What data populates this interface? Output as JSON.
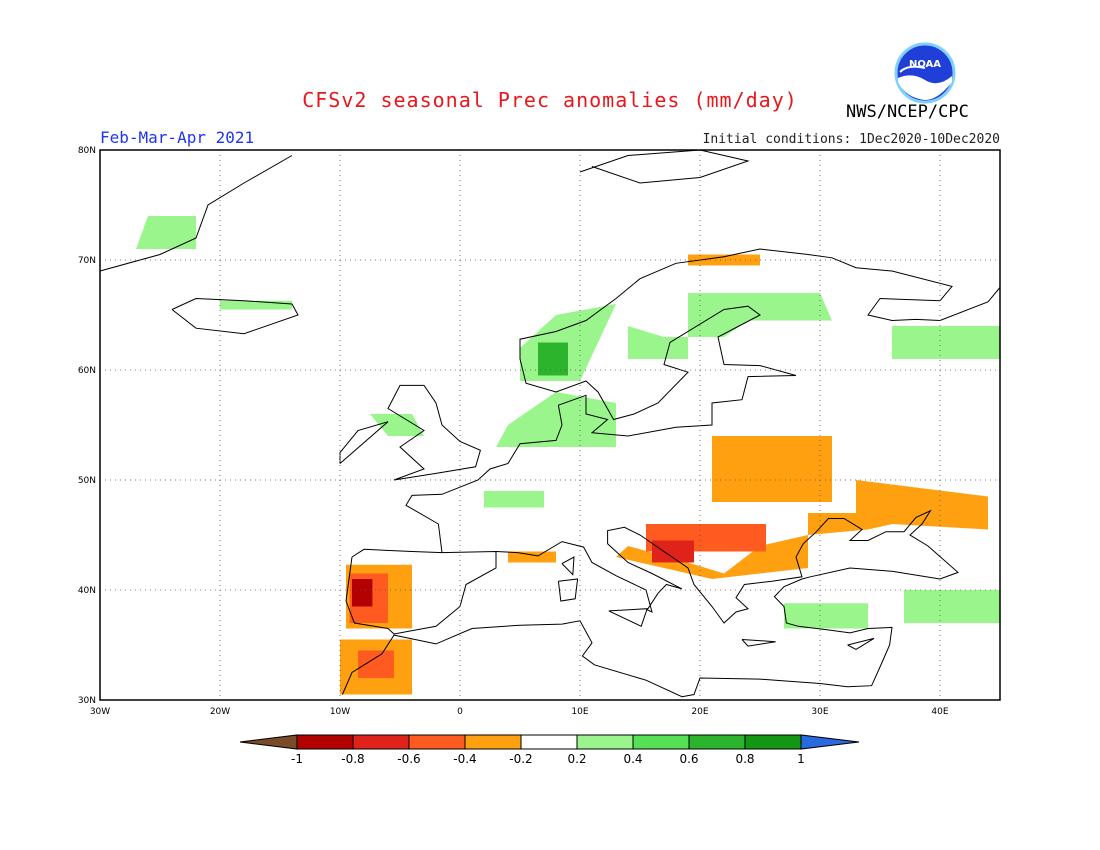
{
  "header": {
    "title": "CFSv2 seasonal Prec anomalies (mm/day)",
    "agency": "NWS/NCEP/CPC",
    "logo_text": "NOAA",
    "period": "Feb-Mar-Apr 2021",
    "initial_conditions": "Initial conditions: 1Dec2020-10Dec2020"
  },
  "map": {
    "projection": "equirectangular",
    "lon_range": [
      -30,
      45
    ],
    "lat_range": [
      30,
      80
    ],
    "lat_ticks": [
      "30N",
      "40N",
      "50N",
      "60N",
      "70N",
      "80N"
    ],
    "lon_ticks": [
      "30W",
      "20W",
      "10W",
      "0",
      "10E",
      "20E",
      "30E",
      "40E"
    ],
    "gridlines": "dotted"
  },
  "colorbar": {
    "labels": [
      "-1",
      "-0.8",
      "-0.6",
      "-0.4",
      "-0.2",
      "0.2",
      "0.4",
      "0.6",
      "0.8",
      "1"
    ],
    "colors": {
      "lt_-1": "#7a4a2a",
      "-1_-0.8": "#b30000",
      "-0.8_-0.6": "#e0231a",
      "-0.6_-0.4": "#ff5a1f",
      "-0.4_-0.2": "#ffa010",
      "-0.2_0.2": "#ffffff",
      "0.2_0.4": "#9af58c",
      "0.4_0.6": "#55e055",
      "0.6_0.8": "#2db42d",
      "0.8_1": "#139613",
      "gt_1": "#2a6ae0"
    }
  },
  "anomaly_regions": [
    {
      "name": "greenland-east",
      "level": "0.2_0.4",
      "polygon": [
        [
          -27,
          71
        ],
        [
          -22,
          71
        ],
        [
          -22,
          74
        ],
        [
          -26,
          74
        ]
      ]
    },
    {
      "name": "iceland",
      "level": "0.2_0.4",
      "polygon": [
        [
          -20,
          65.5
        ],
        [
          -14,
          65.5
        ],
        [
          -14,
          66.3
        ],
        [
          -20,
          66.3
        ]
      ]
    },
    {
      "name": "norway-coast",
      "level": "0.2_0.4",
      "polygon": [
        [
          5,
          59
        ],
        [
          10,
          59
        ],
        [
          13,
          66
        ],
        [
          8,
          65
        ],
        [
          5,
          62
        ]
      ]
    },
    {
      "name": "norway-coast-core",
      "level": "0.6_0.8",
      "polygon": [
        [
          6.5,
          59.5
        ],
        [
          9,
          59.5
        ],
        [
          9,
          62.5
        ],
        [
          6.5,
          62.5
        ]
      ]
    },
    {
      "name": "fennoscandia-north",
      "level": "0.2_0.4",
      "polygon": [
        [
          14,
          61
        ],
        [
          19,
          61
        ],
        [
          19,
          67
        ],
        [
          30,
          67
        ],
        [
          31,
          64.5
        ],
        [
          24,
          64.5
        ],
        [
          22,
          63
        ],
        [
          17,
          63
        ],
        [
          14,
          64
        ]
      ]
    },
    {
      "name": "russia-northwest",
      "level": "0.2_0.4",
      "polygon": [
        [
          36,
          61
        ],
        [
          45,
          61
        ],
        [
          45,
          64
        ],
        [
          36,
          64
        ]
      ]
    },
    {
      "name": "ireland-britain-north",
      "level": "0.2_0.4",
      "polygon": [
        [
          -7.5,
          56
        ],
        [
          -4,
          56
        ],
        [
          -3,
          54
        ],
        [
          -6,
          54
        ]
      ]
    },
    {
      "name": "denmark-north-sea",
      "level": "0.2_0.4",
      "polygon": [
        [
          3,
          53
        ],
        [
          13,
          53
        ],
        [
          13,
          57
        ],
        [
          8,
          58
        ],
        [
          4,
          55
        ]
      ]
    },
    {
      "name": "france-north",
      "level": "0.2_0.4",
      "polygon": [
        [
          2,
          47.5
        ],
        [
          7,
          47.5
        ],
        [
          7,
          49
        ],
        [
          2,
          49
        ]
      ]
    },
    {
      "name": "anatolia",
      "level": "0.2_0.4",
      "polygon": [
        [
          27,
          36.5
        ],
        [
          34,
          36.5
        ],
        [
          34,
          38.8
        ],
        [
          27,
          38.8
        ]
      ]
    },
    {
      "name": "caucasus-east",
      "level": "0.2_0.4",
      "polygon": [
        [
          37,
          37
        ],
        [
          45,
          37
        ],
        [
          45,
          40
        ],
        [
          37,
          40
        ]
      ]
    },
    {
      "name": "iberia-west",
      "level": "-0.4_-0.2",
      "polygon": [
        [
          -9.5,
          36.5
        ],
        [
          -4,
          36.5
        ],
        [
          -4,
          42.3
        ],
        [
          -9.5,
          42.3
        ]
      ]
    },
    {
      "name": "iberia-core",
      "level": "-0.6_-0.4",
      "polygon": [
        [
          -9.2,
          37
        ],
        [
          -6,
          37
        ],
        [
          -6,
          41.5
        ],
        [
          -9.2,
          41.5
        ]
      ]
    },
    {
      "name": "portugal-core",
      "level": "-1_-0.8",
      "polygon": [
        [
          -9,
          38.5
        ],
        [
          -7.3,
          38.5
        ],
        [
          -7.3,
          41
        ],
        [
          -9,
          41
        ]
      ]
    },
    {
      "name": "morocco",
      "level": "-0.4_-0.2",
      "polygon": [
        [
          -10,
          30.5
        ],
        [
          -4,
          30.5
        ],
        [
          -4,
          35.5
        ],
        [
          -10,
          35.5
        ]
      ]
    },
    {
      "name": "morocco-core",
      "level": "-0.6_-0.4",
      "polygon": [
        [
          -8.5,
          32
        ],
        [
          -5.5,
          32
        ],
        [
          -5.5,
          34.5
        ],
        [
          -8.5,
          34.5
        ]
      ]
    },
    {
      "name": "balkans-carpathians",
      "level": "-0.4_-0.2",
      "polygon": [
        [
          13,
          43
        ],
        [
          21,
          41
        ],
        [
          29,
          42
        ],
        [
          29,
          47
        ],
        [
          33,
          47
        ],
        [
          33,
          50
        ],
        [
          44,
          48.5
        ],
        [
          44,
          45.5
        ],
        [
          36,
          46
        ],
        [
          34,
          45.5
        ],
        [
          29,
          45
        ],
        [
          25,
          44
        ],
        [
          22,
          41.5
        ],
        [
          19,
          42.5
        ],
        [
          14,
          44
        ]
      ]
    },
    {
      "name": "ukraine-south",
      "level": "-0.4_-0.2",
      "polygon": [
        [
          21,
          48
        ],
        [
          31,
          48
        ],
        [
          31,
          54
        ],
        [
          21,
          54
        ]
      ]
    },
    {
      "name": "balkans-core",
      "level": "-0.6_-0.4",
      "polygon": [
        [
          15.5,
          43.5
        ],
        [
          25.5,
          43.5
        ],
        [
          25.5,
          46
        ],
        [
          15.5,
          46
        ]
      ]
    },
    {
      "name": "adriatic-coast-core",
      "level": "-0.8_-0.6",
      "polygon": [
        [
          16,
          42.5
        ],
        [
          19.5,
          42.5
        ],
        [
          19.5,
          44.5
        ],
        [
          16,
          44.5
        ]
      ]
    },
    {
      "name": "north-italy",
      "level": "-0.4_-0.2",
      "polygon": [
        [
          4,
          42.5
        ],
        [
          8,
          42.5
        ],
        [
          8,
          43.5
        ],
        [
          4,
          43.5
        ]
      ]
    },
    {
      "name": "kola-north",
      "level": "-0.4_-0.2",
      "polygon": [
        [
          19,
          69.5
        ],
        [
          25,
          69.5
        ],
        [
          25,
          70.5
        ],
        [
          19,
          70.5
        ]
      ]
    }
  ]
}
